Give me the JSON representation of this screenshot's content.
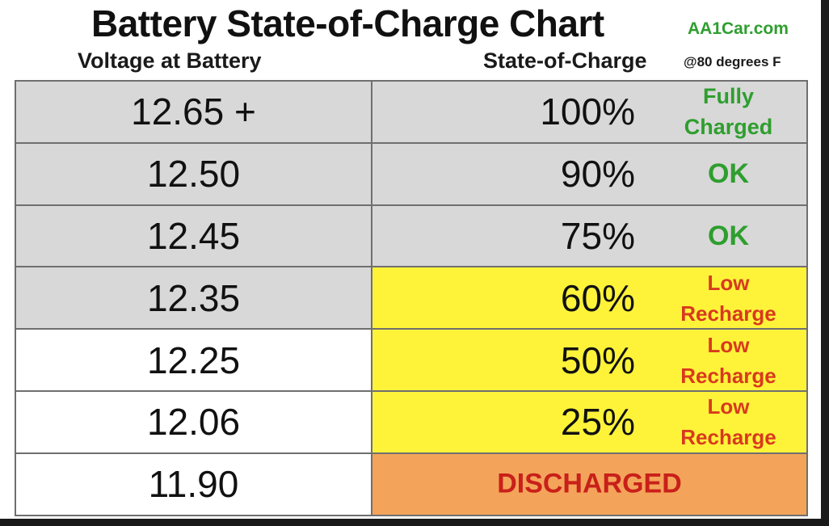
{
  "chart_data": {
    "type": "table",
    "title": "Battery State-of-Charge Chart",
    "brand": "AA1Car.com",
    "columns": {
      "voltage_header": "Voltage at Battery",
      "charge_header": "State-of-Charge",
      "charge_header_note": "@80 degrees F"
    },
    "colors": {
      "ok_text": "#2e9e2e",
      "warn_text": "#d83a1e",
      "low_fill": "#fff33a",
      "discharged_fill": "#f3a45a",
      "discharged_text": "#c9201a",
      "row_gray": "#d8d8d8"
    },
    "rows": [
      {
        "voltage": "12.65 +",
        "charge": "100%",
        "status_1": "Fully",
        "status_2": "Charged"
      },
      {
        "voltage": "12.50",
        "charge": "90%",
        "status_1": "OK",
        "status_2": ""
      },
      {
        "voltage": "12.45",
        "charge": "75%",
        "status_1": "OK",
        "status_2": ""
      },
      {
        "voltage": "12.35",
        "charge": "60%",
        "status_1": "Low",
        "status_2": "Recharge"
      },
      {
        "voltage": "12.25",
        "charge": "50%",
        "status_1": "Low",
        "status_2": "Recharge"
      },
      {
        "voltage": "12.06",
        "charge": "25%",
        "status_1": "Low",
        "status_2": "Recharge"
      },
      {
        "voltage": "11.90",
        "charge": "",
        "status_1": "DISCHARGED",
        "status_2": ""
      }
    ]
  }
}
